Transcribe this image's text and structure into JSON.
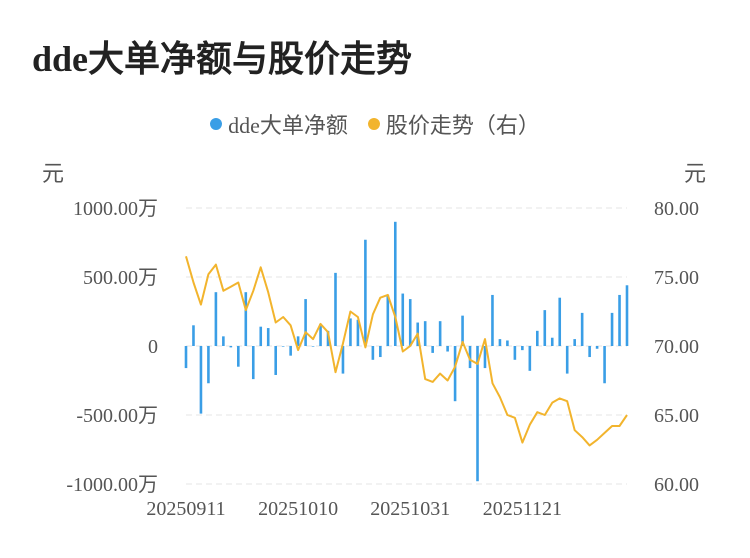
{
  "title": "dde大单净额与股价走势",
  "legend": [
    {
      "label": "dde大单净额",
      "color": "#3a9ee6"
    },
    {
      "label": "股价走势（右）",
      "color": "#f2b42d"
    }
  ],
  "units": {
    "left": "元",
    "right": "元"
  },
  "chart_data": {
    "type": "bar+line",
    "title": "dde大单净额与股价走势",
    "y_left": {
      "unit": "元",
      "range": [
        -10000000,
        10000000
      ],
      "ticks": [
        10000000,
        5000000,
        0,
        -5000000,
        -10000000
      ],
      "tick_labels": [
        "1000.00万",
        "500.00万",
        "0",
        "-500.00万",
        "-1000.00万"
      ]
    },
    "y_right": {
      "unit": "元",
      "range": [
        60,
        80
      ],
      "ticks": [
        80,
        75,
        70,
        65,
        60
      ],
      "tick_labels": [
        "80.00",
        "75.00",
        "70.00",
        "65.00",
        "60.00"
      ]
    },
    "x_tick_labels": [
      {
        "label": "20250911",
        "index": 0
      },
      {
        "label": "20251010",
        "index": 15
      },
      {
        "label": "20251031",
        "index": 30
      },
      {
        "label": "20251121",
        "index": 45
      }
    ],
    "grid": true,
    "legend_position": "top",
    "series": [
      {
        "name": "dde大单净额",
        "type": "bar",
        "axis": "left",
        "values": [
          -1600000,
          1500000,
          -4900000,
          -2700000,
          3900000,
          700000,
          -100000,
          -1500000,
          3900000,
          -2400000,
          1400000,
          1300000,
          -2100000,
          0,
          -700000,
          700000,
          3400000,
          0,
          1600000,
          1100000,
          5300000,
          -2000000,
          2000000,
          1900000,
          7700000,
          -1000000,
          -800000,
          3700000,
          9000000,
          3800000,
          3400000,
          1700000,
          1800000,
          -500000,
          1800000,
          -400000,
          -4000000,
          2200000,
          -1600000,
          -9800000,
          -1600000,
          3700000,
          500000,
          400000,
          -1000000,
          -300000,
          -1800000,
          1100000,
          2600000,
          600000,
          3500000,
          -2000000,
          500000,
          2400000,
          -800000,
          -200000,
          -2700000,
          2400000,
          3700000,
          4400000
        ]
      },
      {
        "name": "股价走势（右）",
        "type": "line",
        "axis": "right",
        "values": [
          76.5,
          74.6,
          73.0,
          75.2,
          75.9,
          74.0,
          74.3,
          74.6,
          72.6,
          74.0,
          75.7,
          73.9,
          71.7,
          72.1,
          71.5,
          69.7,
          71.0,
          70.5,
          71.6,
          71.0,
          68.1,
          70.2,
          72.5,
          72.1,
          69.9,
          72.3,
          73.5,
          73.7,
          72.1,
          69.6,
          70.0,
          70.9,
          67.6,
          67.4,
          68.0,
          67.5,
          68.5,
          70.3,
          69.0,
          68.7,
          70.5,
          67.3,
          66.3,
          65.0,
          64.8,
          63.0,
          64.3,
          65.2,
          65.0,
          65.9,
          66.2,
          66.0,
          63.9,
          63.4,
          62.8,
          63.2,
          63.7,
          64.2,
          64.2,
          65.0
        ]
      }
    ]
  }
}
